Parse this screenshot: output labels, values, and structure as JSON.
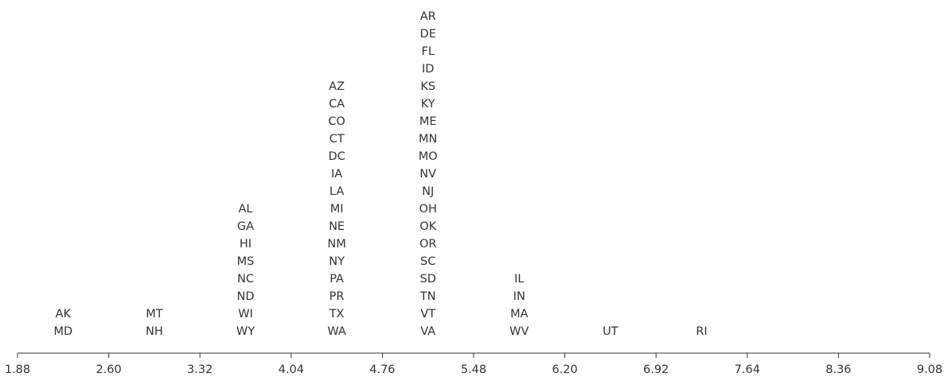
{
  "chart_data": {
    "type": "dot-stack",
    "title": "",
    "xlabel": "",
    "ylabel": "",
    "xlim": [
      1.88,
      9.08
    ],
    "ticks": [
      "1.88",
      "2.60",
      "3.32",
      "4.04",
      "4.76",
      "5.48",
      "6.20",
      "6.92",
      "7.64",
      "8.36",
      "9.08"
    ],
    "grid": false,
    "colors": {
      "text": "#333333",
      "axis": "#333333",
      "background": "#ffffff"
    },
    "bins": [
      {
        "range": [
          1.88,
          2.6
        ],
        "labels": [
          "AK",
          "MD"
        ]
      },
      {
        "range": [
          2.6,
          3.32
        ],
        "labels": [
          "MT",
          "NH"
        ]
      },
      {
        "range": [
          3.32,
          4.04
        ],
        "labels": [
          "AL",
          "GA",
          "HI",
          "MS",
          "NC",
          "ND",
          "WI",
          "WY"
        ]
      },
      {
        "range": [
          4.04,
          4.76
        ],
        "labels": [
          "AZ",
          "CA",
          "CO",
          "CT",
          "DC",
          "IA",
          "LA",
          "MI",
          "NE",
          "NM",
          "NY",
          "PA",
          "PR",
          "TX",
          "WA"
        ]
      },
      {
        "range": [
          4.76,
          5.48
        ],
        "labels": [
          "AR",
          "DE",
          "FL",
          "ID",
          "KS",
          "KY",
          "ME",
          "MN",
          "MO",
          "NV",
          "NJ",
          "OH",
          "OK",
          "OR",
          "SC",
          "SD",
          "TN",
          "VT",
          "VA"
        ]
      },
      {
        "range": [
          5.48,
          6.2
        ],
        "labels": [
          "IL",
          "IN",
          "MA",
          "WV"
        ]
      },
      {
        "range": [
          6.2,
          6.92
        ],
        "labels": [
          "UT"
        ]
      },
      {
        "range": [
          6.92,
          7.64
        ],
        "labels": [
          "RI"
        ]
      },
      {
        "range": [
          7.64,
          8.36
        ],
        "labels": []
      },
      {
        "range": [
          8.36,
          9.08
        ],
        "labels": []
      }
    ]
  }
}
